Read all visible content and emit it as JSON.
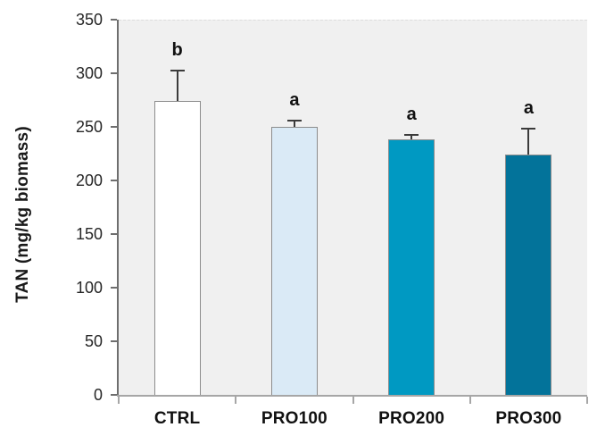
{
  "chart_data": {
    "type": "bar",
    "categories": [
      "CTRL",
      "PRO100",
      "PRO200",
      "PRO300"
    ],
    "values": [
      275,
      251,
      239,
      225
    ],
    "error_up": [
      28,
      6,
      4,
      24
    ],
    "sig_letters": [
      "b",
      "a",
      "a",
      "a"
    ],
    "title": "",
    "xlabel": "",
    "ylabel": "TAN (mg/kg biomass)",
    "ylim": [
      0,
      350
    ],
    "yticks": [
      0,
      50,
      100,
      150,
      200,
      250,
      300,
      350
    ],
    "grid": false,
    "legend": null,
    "bar_colors": [
      "#ffffff",
      "#daeaf6",
      "#0099c2",
      "#03739a"
    ],
    "bar_border_color": "#8c8c8c",
    "plot_background": "#f0f0f0",
    "error_bar_color": "#3b3b3b",
    "y_axis_color": "#6e6e6e",
    "x_axis_color": "#a6a6a6",
    "text_color": "#1a1a1a"
  }
}
